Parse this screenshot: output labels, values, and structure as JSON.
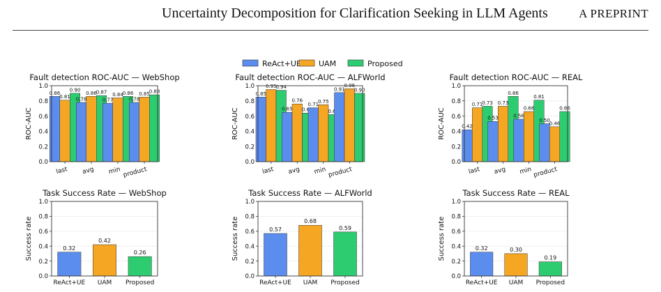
{
  "header": {
    "title": "Uncertainty Decomposition for Clarification Seeking in LLM Agents",
    "label": "A PREPRINT"
  },
  "legend": {
    "items": [
      {
        "name": "ReAct+UE",
        "color": "#5b8def"
      },
      {
        "name": "UAM",
        "color": "#f5a623"
      },
      {
        "name": "Proposed",
        "color": "#2ecc71"
      }
    ],
    "placement": "top-center"
  },
  "colors": {
    "ReAct+UE": "#5b8def",
    "UAM": "#f5a623",
    "Proposed": "#2ecc71"
  },
  "chart_data": [
    {
      "type": "bar",
      "title": "Fault detection ROC-AUC — WebShop",
      "ylabel": "ROC-AUC",
      "ylim": [
        0,
        1.0
      ],
      "yticks": [
        "0.0",
        "0.2",
        "0.4",
        "0.6",
        "0.8",
        "1.0"
      ],
      "categories": [
        "last",
        "avg",
        "min",
        "product"
      ],
      "series": [
        {
          "name": "ReAct+UE",
          "values": [
            0.86,
            0.78,
            0.77,
            0.78
          ],
          "labels": [
            "0.86",
            "0.78",
            "0.77",
            "0.78"
          ]
        },
        {
          "name": "UAM",
          "values": [
            0.81,
            0.86,
            0.84,
            0.85
          ],
          "labels": [
            "0.81",
            "0.86",
            "0.84",
            "0.85"
          ]
        },
        {
          "name": "Proposed",
          "values": [
            0.9,
            0.87,
            0.86,
            0.88
          ],
          "labels": [
            "0.90",
            "0.87",
            "0.86",
            "0.88"
          ]
        }
      ]
    },
    {
      "type": "bar",
      "title": "Fault detection ROC-AUC — ALFWorld",
      "ylabel": "ROC-AUC",
      "ylim": [
        0,
        1.0
      ],
      "yticks": [
        "0.0",
        "0.2",
        "0.4",
        "0.6",
        "0.8",
        "1.0"
      ],
      "categories": [
        "last",
        "avg",
        "min",
        "product"
      ],
      "series": [
        {
          "name": "ReAct+UE",
          "values": [
            0.85,
            0.65,
            0.71,
            0.91
          ],
          "labels": [
            "0.85",
            "0.65",
            "0.71",
            "0.91"
          ]
        },
        {
          "name": "UAM",
          "values": [
            0.95,
            0.76,
            0.75,
            0.96
          ],
          "labels": [
            "0.95",
            "0.76",
            "0.75",
            "0.96"
          ]
        },
        {
          "name": "Proposed",
          "values": [
            0.94,
            0.64,
            0.62,
            0.9
          ],
          "labels": [
            "0.94",
            "0.64",
            "0.62",
            "0.90"
          ]
        }
      ]
    },
    {
      "type": "bar",
      "title": "Fault detection ROC-AUC — REAL",
      "ylabel": "ROC-AUC",
      "ylim": [
        0,
        1.0
      ],
      "yticks": [
        "0.0",
        "0.2",
        "0.4",
        "0.6",
        "0.8",
        "1.0"
      ],
      "categories": [
        "last",
        "avg",
        "min",
        "product"
      ],
      "series": [
        {
          "name": "ReAct+UE",
          "values": [
            0.42,
            0.53,
            0.56,
            0.5
          ],
          "labels": [
            "0.42",
            "0.53",
            "0.56",
            "0.50"
          ]
        },
        {
          "name": "UAM",
          "values": [
            0.71,
            0.73,
            0.66,
            0.46
          ],
          "labels": [
            "0.71",
            "0.73",
            "0.66",
            "0.46"
          ]
        },
        {
          "name": "Proposed",
          "values": [
            0.73,
            0.86,
            0.81,
            0.66
          ],
          "labels": [
            "0.73",
            "0.86",
            "0.81",
            "0.66"
          ]
        }
      ]
    },
    {
      "type": "bar",
      "title": "Task Success Rate — WebShop",
      "ylabel": "Success rate",
      "ylim": [
        0,
        1.0
      ],
      "yticks": [
        "0.0",
        "0.2",
        "0.4",
        "0.6",
        "0.8",
        "1.0"
      ],
      "categories": [
        "ReAct+UE",
        "UAM",
        "Proposed"
      ],
      "values": [
        0.32,
        0.42,
        0.26
      ],
      "labels": [
        "0.32",
        "0.42",
        "0.26"
      ]
    },
    {
      "type": "bar",
      "title": "Task Success Rate — ALFWorld",
      "ylabel": "Success rate",
      "ylim": [
        0,
        1.0
      ],
      "yticks": [
        "0.0",
        "0.2",
        "0.4",
        "0.6",
        "0.8",
        "1.0"
      ],
      "categories": [
        "ReAct+UE",
        "UAM",
        "Proposed"
      ],
      "values": [
        0.57,
        0.68,
        0.59
      ],
      "labels": [
        "0.57",
        "0.68",
        "0.59"
      ]
    },
    {
      "type": "bar",
      "title": "Task Success Rate — REAL",
      "ylabel": "Success rate",
      "ylim": [
        0,
        1.0
      ],
      "yticks": [
        "0.0",
        "0.2",
        "0.4",
        "0.6",
        "0.8",
        "1.0"
      ],
      "categories": [
        "ReAct+UE",
        "UAM",
        "Proposed"
      ],
      "values": [
        0.32,
        0.3,
        0.19
      ],
      "labels": [
        "0.32",
        "0.30",
        "0.19"
      ]
    }
  ]
}
